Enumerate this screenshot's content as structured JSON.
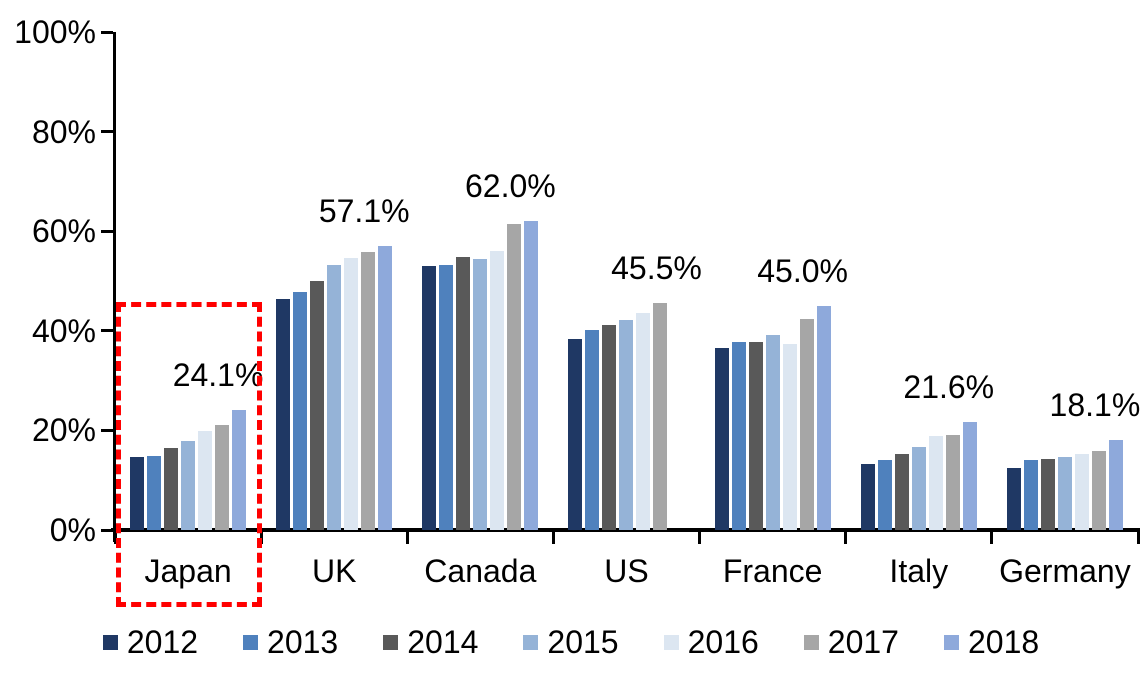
{
  "chart_data": {
    "type": "bar",
    "title": "",
    "categories": [
      "Japan",
      "UK",
      "Canada",
      "US",
      "France",
      "Italy",
      "Germany"
    ],
    "series": [
      {
        "name": "2012",
        "color": "#1F3864",
        "values": [
          14.7,
          46.4,
          53.0,
          38.3,
          36.5,
          13.2,
          12.5
        ]
      },
      {
        "name": "2013",
        "color": "#4F81BD",
        "values": [
          14.9,
          47.8,
          53.3,
          40.1,
          37.7,
          14.1,
          14.0
        ]
      },
      {
        "name": "2014",
        "color": "#595959",
        "values": [
          16.5,
          50.0,
          54.9,
          41.1,
          37.8,
          15.3,
          14.3
        ]
      },
      {
        "name": "2015",
        "color": "#95B3D7",
        "values": [
          17.9,
          53.2,
          54.5,
          42.2,
          39.2,
          16.7,
          14.7
        ]
      },
      {
        "name": "2016",
        "color": "#DCE6F1",
        "values": [
          19.9,
          54.7,
          56.1,
          43.5,
          37.4,
          18.9,
          15.3
        ]
      },
      {
        "name": "2017",
        "color": "#A6A6A6",
        "values": [
          21.0,
          55.8,
          61.5,
          45.5,
          42.4,
          19.1,
          15.9
        ]
      },
      {
        "name": "2018",
        "color": "#8EA9DB",
        "values": [
          24.1,
          57.1,
          62.0,
          null,
          45.0,
          21.6,
          18.1
        ]
      }
    ],
    "group_data_labels": [
      "24.1%",
      "57.1%",
      "62.0%",
      "45.5%",
      "45.0%",
      "21.6%",
      "18.1%"
    ],
    "y_axis": {
      "tick_labels": [
        "0%",
        "20%",
        "40%",
        "60%",
        "80%",
        "100%"
      ],
      "min": 0,
      "max": 100,
      "grid": false
    },
    "legend_position": "bottom",
    "annotations": {
      "highlight_box": {
        "target_category": "Japan",
        "color": "#FF0000",
        "style": "dashed"
      }
    }
  }
}
